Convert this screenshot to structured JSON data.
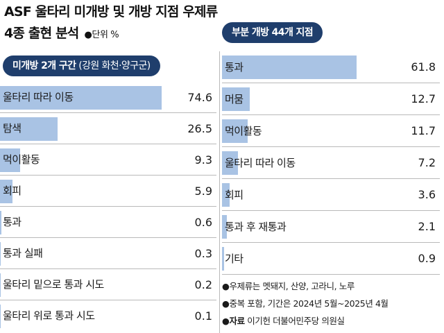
{
  "title": {
    "line1": "ASF 울타리 미개방 및 개방 지점 우제류",
    "line2": "4종 출현 분석",
    "unit": "●단위 %"
  },
  "colors": {
    "bar": "#a9c3e4",
    "pill": "#1f3e6c",
    "separator": "#b9b9b9"
  },
  "notes": {
    "note1": "●우제류는 멧돼지, 산양, 고라니, 노루",
    "note2": "●중복 포함, 기간은 2024년 5월~2025년 4월",
    "source_label": "●자료",
    "source_text": " 이기헌 더불어민주당 의원실"
  },
  "chart_data": [
    {
      "type": "bar",
      "orientation": "horizontal",
      "title": "미개방 2개 구간",
      "subtitle": "(강원 화천·양구군)",
      "unit": "%",
      "categories": [
        "울타리 따라 이동",
        "탐색",
        "먹이활동",
        "회피",
        "통과",
        "통과 실패",
        "울타리 밑으로 통과 시도",
        "울타리 위로 통과 시도"
      ],
      "values": [
        74.6,
        26.5,
        9.3,
        5.9,
        0.6,
        0.3,
        0.2,
        0.1
      ],
      "value_labels": [
        "74.6",
        "26.5",
        "9.3",
        "5.9",
        "0.6",
        "0.3",
        "0.2",
        "0.1"
      ],
      "xlim": [
        0,
        100
      ],
      "grid": false
    },
    {
      "type": "bar",
      "orientation": "horizontal",
      "title": "부분 개방 44개 지점",
      "unit": "%",
      "categories": [
        "통과",
        "머뭄",
        "먹이활동",
        "울타리 따라 이동",
        "회피",
        "통과 후 재통과",
        "기타"
      ],
      "values": [
        61.8,
        12.7,
        11.7,
        7.2,
        3.6,
        2.1,
        0.9
      ],
      "value_labels": [
        "61.8",
        "12.7",
        "11.7",
        "7.2",
        "3.6",
        "2.1",
        "0.9"
      ],
      "xlim": [
        0,
        100
      ],
      "grid": false
    }
  ]
}
